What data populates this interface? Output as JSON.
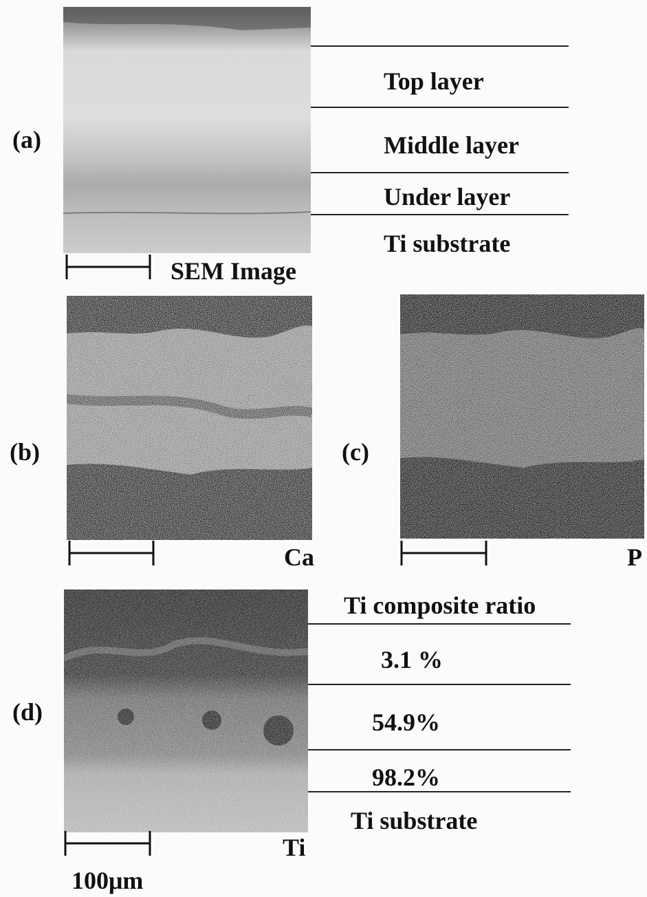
{
  "panels": {
    "a": {
      "label": "(a)",
      "caption": "SEM Image",
      "layers": [
        "Top layer",
        "Middle layer",
        "Under layer",
        "Ti substrate"
      ]
    },
    "b": {
      "label": "(b)",
      "caption": "Ca"
    },
    "c": {
      "label": "(c)",
      "caption": "P"
    },
    "d": {
      "label": "(d)",
      "caption": "Ti",
      "header": "Ti composite ratio",
      "ratios": [
        "3.1 %",
        "54.9%",
        "98.2%"
      ],
      "substrate": "Ti substrate"
    }
  },
  "scale_label": "100μm",
  "colors": {
    "ink": "#111111",
    "sem_light": "#d8d8d6",
    "map_dark": "#2b2b2b",
    "map_bright": "#c8c8c8"
  }
}
